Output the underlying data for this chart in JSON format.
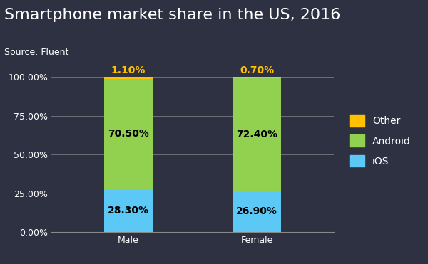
{
  "title": "Smartphone market share in the US, 2016",
  "source": "Source: Fluent",
  "categories": [
    "Male",
    "Female"
  ],
  "ios": [
    28.3,
    26.9
  ],
  "android": [
    70.5,
    72.4
  ],
  "other": [
    1.1,
    0.7
  ],
  "ios_color": "#5bc8f5",
  "android_color": "#92d050",
  "other_color": "#ffc000",
  "background_color": "#2d3142",
  "text_color": "#ffffff",
  "label_color_bars": "#000000",
  "label_color_other": "#ffc000",
  "title_fontsize": 16,
  "source_fontsize": 9,
  "tick_fontsize": 9,
  "bar_label_fontsize": 10,
  "legend_fontsize": 10,
  "bar_width": 0.38,
  "ylim": [
    0,
    107
  ],
  "yticks": [
    0,
    25,
    50,
    75,
    100
  ],
  "ytick_labels": [
    "0.00%",
    "25.00%",
    "50.00%",
    "75.00%",
    "100.00%"
  ]
}
